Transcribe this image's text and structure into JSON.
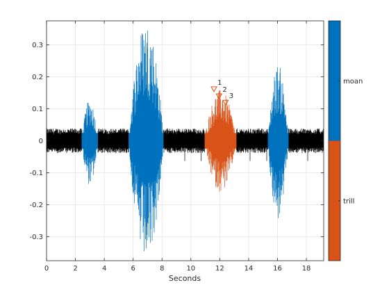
{
  "chart_data": {
    "type": "line",
    "title": "",
    "xlabel": "Seconds",
    "ylabel": "",
    "xlim": [
      0,
      19.2
    ],
    "ylim": [
      -0.375,
      0.375
    ],
    "x_ticks": [
      0,
      2,
      4,
      6,
      8,
      10,
      12,
      14,
      16,
      18
    ],
    "x_tick_labels": [
      "0",
      "2",
      "4",
      "6",
      "8",
      "10",
      "12",
      "14",
      "16",
      "18"
    ],
    "y_ticks": [
      0.3,
      0.2,
      0.1,
      0,
      -0.1,
      -0.2,
      -0.3
    ],
    "y_tick_labels": [
      "0.3",
      "0.2",
      "0.1",
      "0",
      "-0.1",
      "-0.2",
      "-0.3"
    ],
    "grid": true,
    "colors": {
      "background_noise": "#000000",
      "moan": "#0072BD",
      "trill": "#D95319"
    },
    "signal": {
      "noise_amplitude": 0.035,
      "segments": [
        {
          "label": "moan",
          "start": 2.45,
          "end": 3.55,
          "peak_pos": 0.13,
          "peak_neg": -0.14
        },
        {
          "label": "moan",
          "start": 5.7,
          "end": 8.1,
          "peak_pos": 0.375,
          "peak_neg": -0.375
        },
        {
          "label": "trill",
          "start": 10.95,
          "end": 13.15,
          "peak_pos": 0.16,
          "peak_neg": -0.16
        },
        {
          "label": "moan",
          "start": 15.35,
          "end": 16.75,
          "peak_pos": 0.24,
          "peak_neg": -0.25
        }
      ]
    },
    "annotations": [
      {
        "label": "1",
        "x": 11.6,
        "y": 0.16
      },
      {
        "label": "2",
        "x": 11.95,
        "y": 0.138
      },
      {
        "label": "3",
        "x": 12.4,
        "y": 0.118
      }
    ],
    "colorbar": {
      "labels": [
        {
          "name": "moan",
          "color": "#0072BD"
        },
        {
          "name": "trill",
          "color": "#D95319"
        }
      ]
    }
  }
}
